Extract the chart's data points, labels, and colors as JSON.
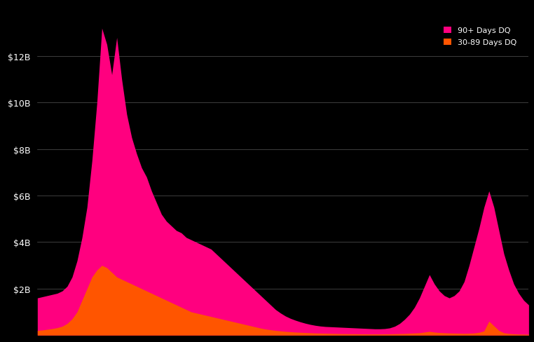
{
  "background_color": "#000000",
  "grid_color": "#555555",
  "color_90plus": "#FF007F",
  "color_30_89": "#FF5500",
  "legend_90plus": "90+ Days DQ",
  "legend_30_89": "30-89 Days DQ",
  "ylim": [
    0,
    14000000000
  ],
  "yticks": [
    2000000000,
    4000000000,
    6000000000,
    8000000000,
    10000000000,
    12000000000
  ],
  "ytick_labels": [
    "$2B",
    "$4B",
    "$6B",
    "$8B",
    "$10B",
    "$12B"
  ],
  "x": [
    0,
    1,
    2,
    3,
    4,
    5,
    6,
    7,
    8,
    9,
    10,
    11,
    12,
    13,
    14,
    15,
    16,
    17,
    18,
    19,
    20,
    21,
    22,
    23,
    24,
    25,
    26,
    27,
    28,
    29,
    30,
    31,
    32,
    33,
    34,
    35,
    36,
    37,
    38,
    39,
    40,
    41,
    42,
    43,
    44,
    45,
    46,
    47,
    48,
    49,
    50,
    51,
    52,
    53,
    54,
    55,
    56,
    57,
    58,
    59,
    60,
    61,
    62,
    63,
    64,
    65,
    66,
    67,
    68,
    69,
    70,
    71,
    72,
    73,
    74,
    75,
    76,
    77,
    78,
    79,
    80,
    81,
    82,
    83,
    84,
    85,
    86,
    87,
    88,
    89,
    90,
    91,
    92,
    93,
    94,
    95,
    96,
    97,
    98,
    99
  ],
  "y_90plus": [
    1600000000,
    1650000000,
    1700000000,
    1750000000,
    1800000000,
    1900000000,
    2100000000,
    2500000000,
    3200000000,
    4200000000,
    5500000000,
    7500000000,
    10000000000,
    13200000000,
    12500000000,
    11200000000,
    12800000000,
    11000000000,
    9500000000,
    8500000000,
    7800000000,
    7200000000,
    6800000000,
    6200000000,
    5700000000,
    5200000000,
    4900000000,
    4700000000,
    4500000000,
    4400000000,
    4200000000,
    4100000000,
    4000000000,
    3900000000,
    3800000000,
    3700000000,
    3500000000,
    3300000000,
    3100000000,
    2900000000,
    2700000000,
    2500000000,
    2300000000,
    2100000000,
    1900000000,
    1700000000,
    1500000000,
    1300000000,
    1100000000,
    950000000,
    820000000,
    720000000,
    640000000,
    570000000,
    510000000,
    460000000,
    420000000,
    390000000,
    370000000,
    360000000,
    350000000,
    340000000,
    330000000,
    320000000,
    310000000,
    300000000,
    290000000,
    280000000,
    270000000,
    270000000,
    280000000,
    310000000,
    380000000,
    500000000,
    680000000,
    900000000,
    1200000000,
    1600000000,
    2100000000,
    2600000000,
    2200000000,
    1900000000,
    1700000000,
    1600000000,
    1700000000,
    1900000000,
    2300000000,
    3000000000,
    3800000000,
    4600000000,
    5500000000,
    6200000000,
    5500000000,
    4500000000,
    3500000000,
    2800000000,
    2200000000,
    1800000000,
    1500000000,
    1300000000
  ],
  "y_30_89": [
    200000000,
    220000000,
    250000000,
    280000000,
    320000000,
    380000000,
    500000000,
    700000000,
    1000000000,
    1500000000,
    2000000000,
    2500000000,
    2800000000,
    3000000000,
    2900000000,
    2700000000,
    2500000000,
    2400000000,
    2300000000,
    2200000000,
    2100000000,
    2000000000,
    1900000000,
    1800000000,
    1700000000,
    1600000000,
    1500000000,
    1400000000,
    1300000000,
    1200000000,
    1100000000,
    1000000000,
    950000000,
    900000000,
    850000000,
    800000000,
    750000000,
    700000000,
    650000000,
    600000000,
    550000000,
    500000000,
    450000000,
    400000000,
    350000000,
    300000000,
    260000000,
    230000000,
    200000000,
    180000000,
    160000000,
    145000000,
    130000000,
    120000000,
    110000000,
    100000000,
    90000000,
    85000000,
    80000000,
    75000000,
    70000000,
    65000000,
    62000000,
    60000000,
    58000000,
    55000000,
    52000000,
    50000000,
    50000000,
    50000000,
    52000000,
    55000000,
    60000000,
    65000000,
    70000000,
    80000000,
    90000000,
    100000000,
    130000000,
    160000000,
    130000000,
    110000000,
    100000000,
    90000000,
    85000000,
    80000000,
    75000000,
    80000000,
    90000000,
    120000000,
    180000000,
    600000000,
    400000000,
    200000000,
    100000000,
    70000000,
    55000000,
    45000000,
    40000000,
    35000000
  ]
}
